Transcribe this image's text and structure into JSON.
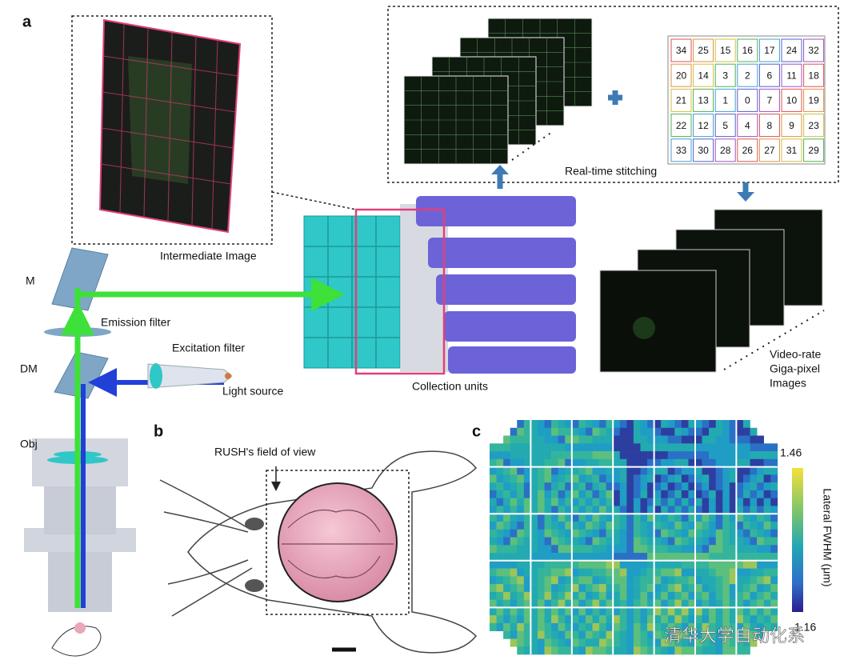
{
  "panel_labels": {
    "a": "a",
    "b": "b",
    "c": "c"
  },
  "panel_a": {
    "intermediate_image": "Intermediate Image",
    "mirror": "M",
    "emission_filter": "Emission filter",
    "dichroic_mirror": "DM",
    "excitation_filter": "Excitation filter",
    "light_source": "Light source",
    "objective": "Obj",
    "collection_units": "Collection units",
    "stitching": {
      "label": "Real-time stitching",
      "tile_ids": [
        [
          34,
          25,
          15,
          16,
          17,
          24,
          32
        ],
        [
          20,
          14,
          3,
          2,
          6,
          11,
          18
        ],
        [
          21,
          13,
          1,
          0,
          7,
          10,
          19
        ],
        [
          22,
          12,
          5,
          4,
          8,
          9,
          23
        ],
        [
          33,
          30,
          28,
          26,
          27,
          31,
          29
        ]
      ]
    },
    "output": [
      "Video-rate",
      "Giga-pixel",
      "Images"
    ]
  },
  "panel_b": {
    "annotation": "RUSH's field of view"
  },
  "panel_c": {
    "colorbar_max": 1.46,
    "colorbar_min": 1.16,
    "colorbar_label": "Lateral FWHM (μm)"
  },
  "watermark": "清华大学自动化系"
}
